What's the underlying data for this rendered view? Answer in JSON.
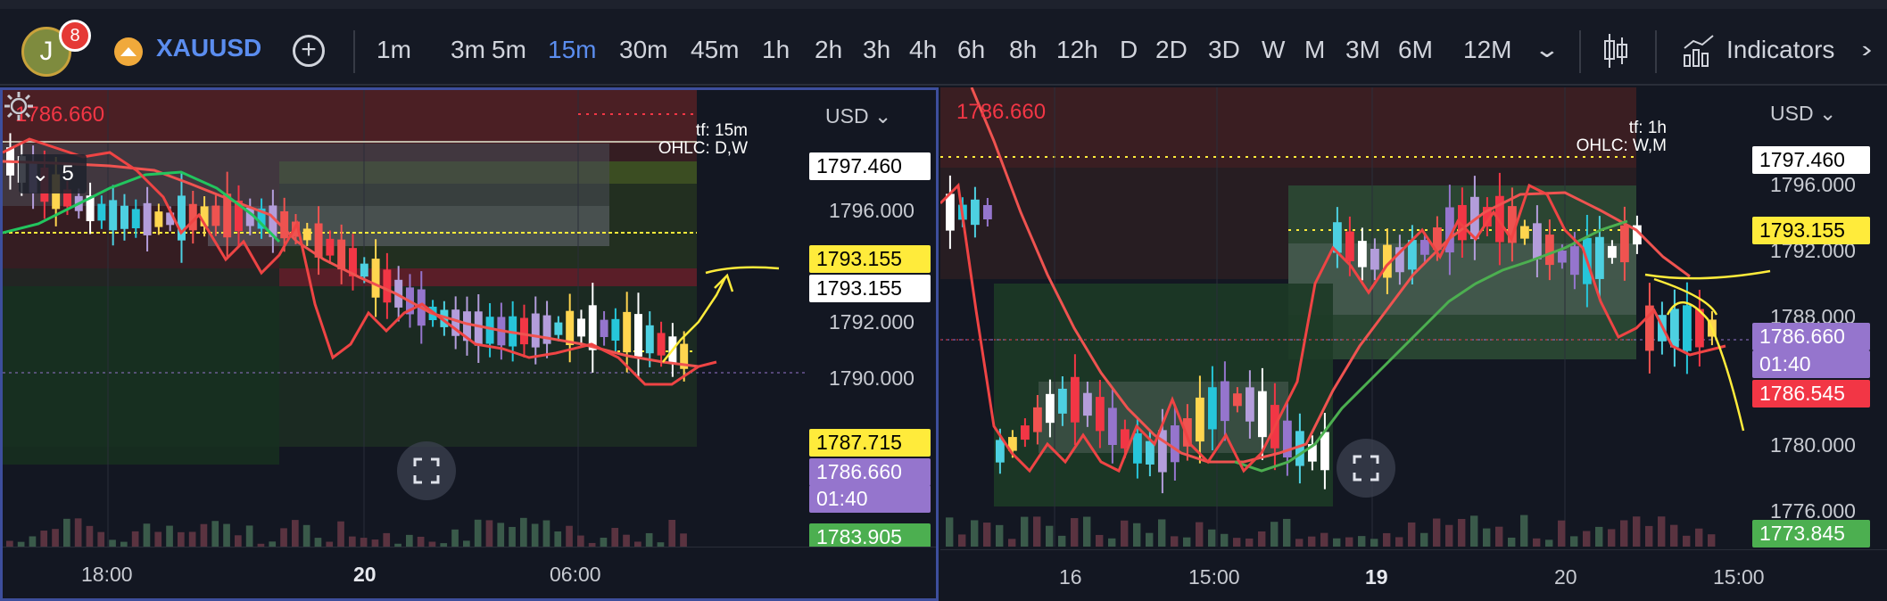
{
  "toolbar": {
    "avatar_letter": "J",
    "notification_count": "8",
    "symbol": "XAUUSD",
    "add_symbol": "+",
    "timeframes": [
      "1m",
      "3m",
      "5m",
      "15m",
      "30m",
      "45m",
      "1h",
      "2h",
      "3h",
      "4h",
      "6h",
      "8h",
      "12h",
      "D",
      "2D",
      "3D",
      "W",
      "M",
      "3M",
      "6M",
      "12M"
    ],
    "active_timeframe": "15m",
    "more_chevron": "⌄",
    "indicators_label": "Indicators"
  },
  "left_chart": {
    "last_price": "1786.660",
    "currency": "USD",
    "timeframe_info": "tf: 15m",
    "ohlc_info": "OHLC: D,W",
    "collapse_count": "5",
    "price_axis": [
      "1796.000",
      "1792.000",
      "1790.000"
    ],
    "price_tags": [
      {
        "value": "1797.460",
        "bg": "#ffffff",
        "fg": "#000000"
      },
      {
        "value": "1793.155",
        "bg": "#ffeb3b",
        "fg": "#000000"
      },
      {
        "value": "1793.155",
        "bg": "#ffffff",
        "fg": "#000000"
      },
      {
        "value": "1787.715",
        "bg": "#ffeb3b",
        "fg": "#000000"
      },
      {
        "value": "1786.660",
        "bg": "#9575cd",
        "fg": "#ffffff"
      },
      {
        "value": "01:40",
        "bg": "#9575cd",
        "fg": "#ffffff"
      },
      {
        "value": "1783.905",
        "bg": "#4caf50",
        "fg": "#ffffff"
      }
    ],
    "time_axis": [
      "18:00",
      "20",
      "06:00"
    ]
  },
  "right_chart": {
    "last_price": "1786.660",
    "currency": "USD",
    "timeframe_info": "tf: 1h",
    "ohlc_info": "OHLC: W,M",
    "price_axis": [
      "1796.000",
      "1792.000",
      "1788.000",
      "1780.000",
      "1776.000"
    ],
    "price_tags": [
      {
        "value": "1797.460",
        "bg": "#ffffff",
        "fg": "#000000"
      },
      {
        "value": "1793.155",
        "bg": "#ffeb3b",
        "fg": "#000000"
      },
      {
        "value": "1786.660",
        "bg": "#9575cd",
        "fg": "#ffffff"
      },
      {
        "value": "01:40",
        "bg": "#9575cd",
        "fg": "#ffffff"
      },
      {
        "value": "1786.545",
        "bg": "#f23645",
        "fg": "#ffffff"
      },
      {
        "value": "1773.845",
        "bg": "#4caf50",
        "fg": "#ffffff"
      }
    ],
    "time_axis": [
      "16",
      "15:00",
      "19",
      "20",
      "15:00"
    ]
  },
  "colors": {
    "accent": "#5b8def",
    "bull": "#26a69a",
    "bear": "#f23645",
    "ema_fast": "#22c55e",
    "ema_slow": "#ef5350",
    "annotation": "#ffeb3b"
  }
}
